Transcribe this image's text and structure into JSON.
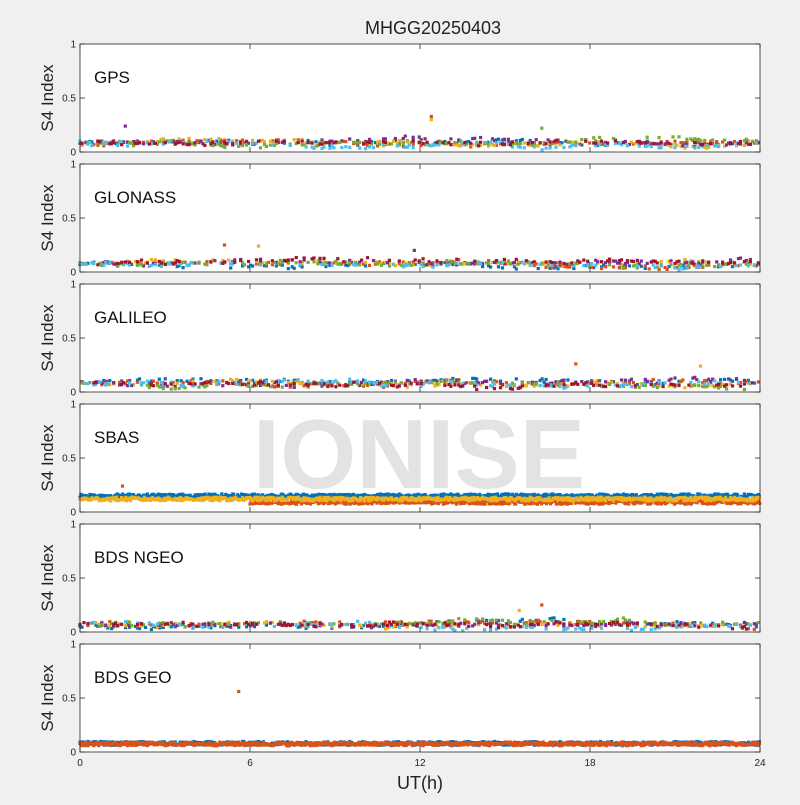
{
  "figure": {
    "title": "MHGG20250403",
    "watermark": "IONISE",
    "xlabel": "UT(h)"
  },
  "palette": [
    "#0072bd",
    "#d95319",
    "#edb120",
    "#7e2f8e",
    "#77ac30",
    "#4dbeee",
    "#a2142f"
  ],
  "chart_data": [
    {
      "type": "scatter",
      "panel_label": "GPS",
      "ylabel": "S4 Index",
      "xlim": [
        0,
        24
      ],
      "ylim": [
        0,
        1
      ],
      "x_ticks": [
        0,
        6,
        12,
        18,
        24
      ],
      "x_tick_labels": [
        "0",
        "6",
        "12",
        "18",
        "24"
      ],
      "y_ticks": [
        0,
        0.5,
        1
      ],
      "y_tick_labels": [
        "0",
        "0.5",
        "1"
      ],
      "grid": false,
      "series_count": 7,
      "base_level": 0.08,
      "typical_range": [
        0.02,
        0.2
      ],
      "outliers": [
        {
          "x": 12.4,
          "y": 0.33
        },
        {
          "x": 12.4,
          "y": 0.3
        },
        {
          "x": 1.6,
          "y": 0.24
        },
        {
          "x": 16.3,
          "y": 0.22
        }
      ]
    },
    {
      "type": "scatter",
      "panel_label": "GLONASS",
      "ylabel": "S4 Index",
      "xlim": [
        0,
        24
      ],
      "ylim": [
        0,
        1
      ],
      "x_ticks": [
        0,
        6,
        12,
        18,
        24
      ],
      "x_tick_labels": [
        "0",
        "6",
        "12",
        "18",
        "24"
      ],
      "y_ticks": [
        0,
        0.5,
        1
      ],
      "y_tick_labels": [
        "0",
        "0.5",
        "1"
      ],
      "grid": false,
      "series_count": 7,
      "base_level": 0.08,
      "typical_range": [
        0.02,
        0.22
      ],
      "outliers": [
        {
          "x": 5.1,
          "y": 0.25
        },
        {
          "x": 6.3,
          "y": 0.24
        },
        {
          "x": 11.8,
          "y": 0.2
        }
      ]
    },
    {
      "type": "scatter",
      "panel_label": "GALILEO",
      "ylabel": "S4 Index",
      "xlim": [
        0,
        24
      ],
      "ylim": [
        0,
        1
      ],
      "x_ticks": [
        0,
        6,
        12,
        18,
        24
      ],
      "x_tick_labels": [
        "0",
        "6",
        "12",
        "18",
        "24"
      ],
      "y_ticks": [
        0,
        0.5,
        1
      ],
      "y_tick_labels": [
        "0",
        "0.5",
        "1"
      ],
      "grid": false,
      "series_count": 7,
      "base_level": 0.08,
      "typical_range": [
        0.02,
        0.2
      ],
      "outliers": [
        {
          "x": 17.5,
          "y": 0.26
        },
        {
          "x": 21.9,
          "y": 0.24
        }
      ]
    },
    {
      "type": "scatter",
      "panel_label": "SBAS",
      "ylabel": "S4 Index",
      "xlim": [
        0,
        24
      ],
      "ylim": [
        0,
        1
      ],
      "x_ticks": [
        0,
        6,
        12,
        18,
        24
      ],
      "x_tick_labels": [
        "0",
        "6",
        "12",
        "18",
        "24"
      ],
      "y_ticks": [
        0,
        0.5,
        1
      ],
      "y_tick_labels": [
        "0",
        "0.5",
        "1"
      ],
      "grid": false,
      "series_count": 3,
      "series_levels": [
        0.15,
        0.09,
        0.12
      ],
      "series_start_x": [
        0,
        6,
        0
      ],
      "typical_range": [
        0.05,
        0.25
      ],
      "outliers": [
        {
          "x": 1.5,
          "y": 0.24
        }
      ]
    },
    {
      "type": "scatter",
      "panel_label": "BDS NGEO",
      "ylabel": "S4 Index",
      "xlim": [
        0,
        24
      ],
      "ylim": [
        0,
        1
      ],
      "x_ticks": [
        0,
        6,
        12,
        18,
        24
      ],
      "x_tick_labels": [
        "0",
        "6",
        "12",
        "18",
        "24"
      ],
      "y_ticks": [
        0,
        0.5,
        1
      ],
      "y_tick_labels": [
        "0",
        "0.5",
        "1"
      ],
      "grid": false,
      "series_count": 7,
      "base_level": 0.07,
      "typical_range": [
        0.02,
        0.2
      ],
      "outliers": [
        {
          "x": 16.3,
          "y": 0.25
        },
        {
          "x": 15.5,
          "y": 0.2
        }
      ]
    },
    {
      "type": "scatter",
      "panel_label": "BDS GEO",
      "ylabel": "S4 Index",
      "xlim": [
        0,
        24
      ],
      "ylim": [
        0,
        1
      ],
      "x_ticks": [
        0,
        6,
        12,
        18,
        24
      ],
      "x_tick_labels": [
        "0",
        "6",
        "12",
        "18",
        "24"
      ],
      "y_ticks": [
        0,
        0.5,
        1
      ],
      "y_tick_labels": [
        "0",
        "0.5",
        "1"
      ],
      "grid": false,
      "series_count": 2,
      "series_levels": [
        0.08,
        0.075
      ],
      "series_start_x": [
        0,
        0
      ],
      "typical_range": [
        0.06,
        0.1
      ],
      "outliers": [
        {
          "x": 5.6,
          "y": 0.56
        }
      ]
    }
  ]
}
